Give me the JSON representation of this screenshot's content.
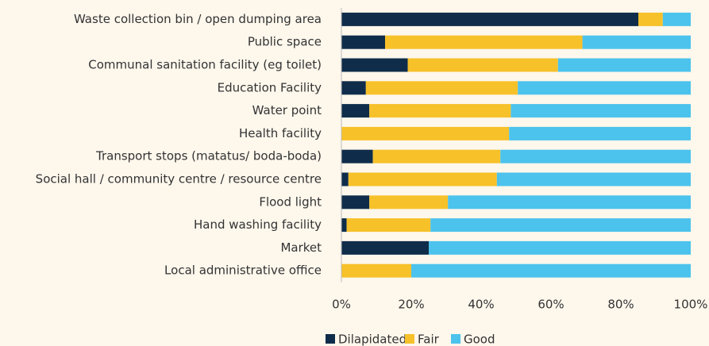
{
  "chart_data": {
    "type": "stacked-barh",
    "categories": [
      "Waste collection bin / open dumping area",
      "Public space",
      "Communal sanitation facility (eg toilet)",
      "Education Facility",
      "Water point",
      "Health facility",
      "Transport stops (matatus/ boda-boda)",
      "Social hall / community centre / resource centre",
      "Flood light",
      "Hand washing facility",
      "Market",
      "Local administrative office"
    ],
    "series": [
      {
        "name": "Dilapidated",
        "color": "#0f2d4a",
        "values": [
          85,
          12.5,
          19,
          7,
          8,
          0,
          9,
          2,
          8,
          1.5,
          25,
          0
        ]
      },
      {
        "name": "Fair",
        "color": "#f7c12a",
        "values": [
          7,
          56.5,
          43,
          43.5,
          40.5,
          48,
          36.5,
          42.5,
          22.5,
          24,
          0,
          20
        ]
      },
      {
        "name": "Good",
        "color": "#4cc3ed",
        "values": [
          8,
          31,
          38,
          49.5,
          51.5,
          52,
          54.5,
          55.5,
          69.5,
          74.5,
          75,
          80
        ]
      }
    ],
    "xlim": [
      0,
      100
    ],
    "xticks": [
      {
        "value": 0,
        "label": "0%"
      },
      {
        "value": 20,
        "label": "20%"
      },
      {
        "value": 40,
        "label": "40%"
      },
      {
        "value": 60,
        "label": "60%"
      },
      {
        "value": 80,
        "label": "80%"
      },
      {
        "value": 100,
        "label": "100%"
      }
    ],
    "legend": "bottom"
  }
}
